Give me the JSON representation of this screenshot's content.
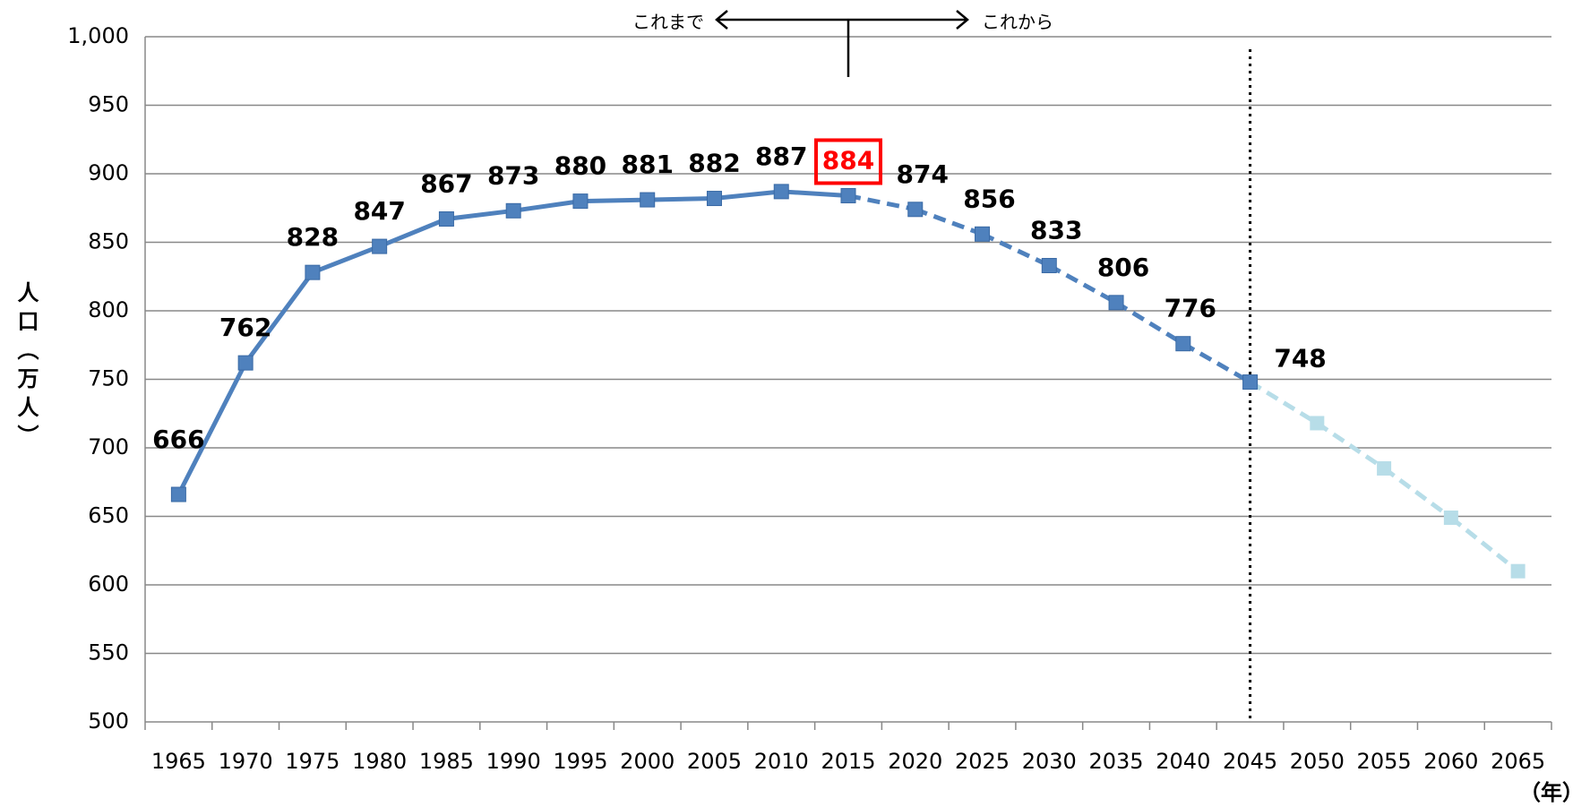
{
  "chart_data": {
    "type": "line",
    "y_label": "人口（万人）",
    "x_label": "（年）",
    "annotations": {
      "past": "これまで",
      "future": "これから"
    },
    "categories": [
      "1965",
      "1970",
      "1975",
      "1980",
      "1985",
      "1990",
      "1995",
      "2000",
      "2005",
      "2010",
      "2015",
      "2020",
      "2025",
      "2030",
      "2035",
      "2040",
      "2045",
      "2050",
      "2055",
      "2060",
      "2065"
    ],
    "values": [
      666,
      762,
      828,
      847,
      867,
      873,
      880,
      881,
      882,
      887,
      884,
      874,
      856,
      833,
      806,
      776,
      748,
      718,
      685,
      649,
      610
    ],
    "value_labels": [
      "666",
      "762",
      "828",
      "847",
      "867",
      "873",
      "880",
      "881",
      "882",
      "887",
      "884",
      "874",
      "856",
      "833",
      "806",
      "776",
      "748",
      null,
      null,
      null,
      null
    ],
    "point_colors": [
      "#4f81bd",
      "#4f81bd",
      "#4f81bd",
      "#4f81bd",
      "#4f81bd",
      "#4f81bd",
      "#4f81bd",
      "#4f81bd",
      "#4f81bd",
      "#4f81bd",
      "#4f81bd",
      "#4f81bd",
      "#4f81bd",
      "#4f81bd",
      "#4f81bd",
      "#4f81bd",
      "#4f81bd",
      "#b7dde8",
      "#b7dde8",
      "#b7dde8",
      "#b7dde8"
    ],
    "dashed": [
      false,
      false,
      false,
      false,
      false,
      false,
      false,
      false,
      false,
      false,
      false,
      true,
      true,
      true,
      true,
      true,
      true,
      true,
      true,
      true,
      true
    ],
    "highlight_category": "2015",
    "highlight_color": "#ff0000",
    "reference_line_category": "2045",
    "ylim": [
      500,
      1000
    ],
    "yticks": [
      500,
      550,
      600,
      650,
      700,
      750,
      800,
      850,
      900,
      950,
      {
        "value": 1000,
        "label": "1,000"
      }
    ],
    "grid": true
  }
}
